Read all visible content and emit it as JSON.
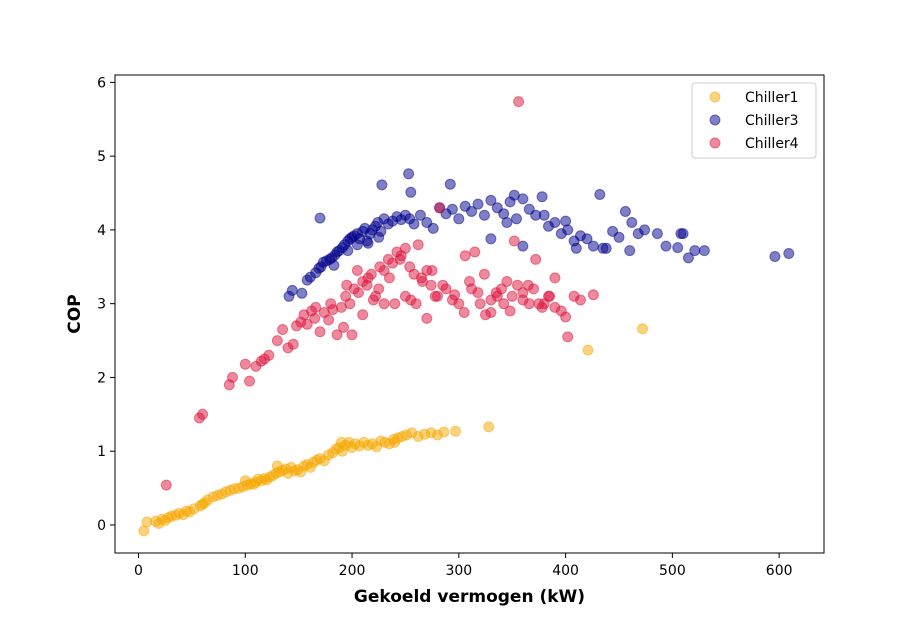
{
  "chart_data": {
    "type": "scatter",
    "xlabel": "Gekoeld vermogen (kW)",
    "ylabel": "COP",
    "xlim": [
      -22,
      642
    ],
    "ylim": [
      -0.38,
      6.1
    ],
    "xticks": [
      0,
      100,
      200,
      300,
      400,
      500,
      600
    ],
    "yticks": [
      0,
      1,
      2,
      3,
      4,
      5,
      6
    ],
    "grid": false,
    "legend_position": "top-right",
    "series": [
      {
        "name": "Chiller1",
        "color": "#f5a800",
        "points": [
          [
            5,
            -0.08
          ],
          [
            8,
            0.04
          ],
          [
            16,
            0.05
          ],
          [
            19,
            0.02
          ],
          [
            22,
            0.08
          ],
          [
            25,
            0.06
          ],
          [
            28,
            0.1
          ],
          [
            31,
            0.12
          ],
          [
            35,
            0.13
          ],
          [
            38,
            0.16
          ],
          [
            42,
            0.14
          ],
          [
            45,
            0.19
          ],
          [
            48,
            0.18
          ],
          [
            52,
            0.22
          ],
          [
            58,
            0.26
          ],
          [
            62,
            0.3
          ],
          [
            65,
            0.34
          ],
          [
            70,
            0.38
          ],
          [
            74,
            0.4
          ],
          [
            78,
            0.42
          ],
          [
            82,
            0.45
          ],
          [
            86,
            0.47
          ],
          [
            90,
            0.49
          ],
          [
            94,
            0.5
          ],
          [
            98,
            0.52
          ],
          [
            102,
            0.54
          ],
          [
            105,
            0.56
          ],
          [
            108,
            0.55
          ],
          [
            110,
            0.58
          ],
          [
            112,
            0.62
          ],
          [
            115,
            0.6
          ],
          [
            118,
            0.63
          ],
          [
            120,
            0.61
          ],
          [
            123,
            0.65
          ],
          [
            126,
            0.67
          ],
          [
            129,
            0.7
          ],
          [
            132,
            0.72
          ],
          [
            135,
            0.74
          ],
          [
            138,
            0.76
          ],
          [
            140,
            0.7
          ],
          [
            143,
            0.78
          ],
          [
            146,
            0.73
          ],
          [
            149,
            0.75
          ],
          [
            152,
            0.72
          ],
          [
            155,
            0.8
          ],
          [
            158,
            0.82
          ],
          [
            161,
            0.78
          ],
          [
            164,
            0.85
          ],
          [
            167,
            0.88
          ],
          [
            170,
            0.9
          ],
          [
            174,
            0.87
          ],
          [
            178,
            0.95
          ],
          [
            182,
            0.98
          ],
          [
            185,
            1.03
          ],
          [
            188,
            1.05
          ],
          [
            191,
            1.0
          ],
          [
            194,
            1.08
          ],
          [
            197,
            1.12
          ],
          [
            200,
            1.05
          ],
          [
            203,
            1.1
          ],
          [
            207,
            1.07
          ],
          [
            211,
            1.12
          ],
          [
            215,
            1.08
          ],
          [
            219,
            1.1
          ],
          [
            223,
            1.06
          ],
          [
            227,
            1.14
          ],
          [
            231,
            1.12
          ],
          [
            235,
            1.1
          ],
          [
            239,
            1.16
          ],
          [
            243,
            1.18
          ],
          [
            247,
            1.2
          ],
          [
            251,
            1.22
          ],
          [
            256,
            1.25
          ],
          [
            262,
            1.2
          ],
          [
            268,
            1.23
          ],
          [
            274,
            1.25
          ],
          [
            280,
            1.22
          ],
          [
            286,
            1.26
          ],
          [
            297,
            1.27
          ],
          [
            328,
            1.33
          ],
          [
            421,
            2.37
          ],
          [
            472,
            2.66
          ],
          [
            130,
            0.8
          ],
          [
            100,
            0.6
          ],
          [
            60,
            0.28
          ],
          [
            190,
            1.12
          ],
          [
            240,
            1.12
          ]
        ]
      },
      {
        "name": "Chiller3",
        "color": "#00008b",
        "points": [
          [
            141,
            3.1
          ],
          [
            144,
            3.18
          ],
          [
            153,
            3.14
          ],
          [
            158,
            3.32
          ],
          [
            161,
            3.36
          ],
          [
            166,
            3.42
          ],
          [
            169,
            3.48
          ],
          [
            171,
            3.5
          ],
          [
            173,
            3.56
          ],
          [
            176,
            3.58
          ],
          [
            179,
            3.6
          ],
          [
            181,
            3.62
          ],
          [
            184,
            3.66
          ],
          [
            186,
            3.7
          ],
          [
            188,
            3.72
          ],
          [
            191,
            3.76
          ],
          [
            193,
            3.8
          ],
          [
            196,
            3.85
          ],
          [
            198,
            3.88
          ],
          [
            200,
            3.9
          ],
          [
            202,
            3.92
          ],
          [
            205,
            3.95
          ],
          [
            207,
            3.88
          ],
          [
            210,
            3.98
          ],
          [
            212,
            4.02
          ],
          [
            214,
            3.85
          ],
          [
            217,
            3.95
          ],
          [
            219,
            4.0
          ],
          [
            222,
            4.05
          ],
          [
            224,
            4.1
          ],
          [
            227,
            3.98
          ],
          [
            230,
            4.15
          ],
          [
            234,
            4.08
          ],
          [
            238,
            4.12
          ],
          [
            242,
            4.18
          ],
          [
            246,
            4.14
          ],
          [
            250,
            4.2
          ],
          [
            254,
            4.15
          ],
          [
            258,
            4.08
          ],
          [
            264,
            4.2
          ],
          [
            270,
            4.1
          ],
          [
            276,
            4.02
          ],
          [
            282,
            4.3
          ],
          [
            288,
            4.22
          ],
          [
            294,
            4.28
          ],
          [
            300,
            4.15
          ],
          [
            306,
            4.32
          ],
          [
            312,
            4.25
          ],
          [
            318,
            4.35
          ],
          [
            324,
            4.2
          ],
          [
            330,
            4.4
          ],
          [
            336,
            4.3
          ],
          [
            342,
            4.22
          ],
          [
            348,
            4.38
          ],
          [
            354,
            4.15
          ],
          [
            360,
            4.42
          ],
          [
            366,
            4.28
          ],
          [
            372,
            4.2
          ],
          [
            378,
            4.45
          ],
          [
            384,
            4.05
          ],
          [
            390,
            4.1
          ],
          [
            396,
            3.95
          ],
          [
            402,
            4.0
          ],
          [
            408,
            3.85
          ],
          [
            414,
            3.92
          ],
          [
            420,
            3.88
          ],
          [
            426,
            3.78
          ],
          [
            432,
            4.48
          ],
          [
            438,
            3.75
          ],
          [
            444,
            3.98
          ],
          [
            450,
            3.9
          ],
          [
            456,
            4.25
          ],
          [
            462,
            4.1
          ],
          [
            468,
            3.95
          ],
          [
            474,
            4.0
          ],
          [
            486,
            3.95
          ],
          [
            494,
            3.78
          ],
          [
            505,
            3.76
          ],
          [
            510,
            3.95
          ],
          [
            515,
            3.62
          ],
          [
            521,
            3.72
          ],
          [
            530,
            3.72
          ],
          [
            596,
            3.64
          ],
          [
            609,
            3.68
          ],
          [
            170,
            4.16
          ],
          [
            228,
            4.61
          ],
          [
            253,
            4.76
          ],
          [
            292,
            4.62
          ],
          [
            352,
            4.47
          ],
          [
            360,
            3.78
          ],
          [
            400,
            4.12
          ],
          [
            330,
            3.88
          ],
          [
            380,
            4.2
          ],
          [
            183,
            3.52
          ],
          [
            196,
            3.72
          ],
          [
            205,
            3.8
          ],
          [
            215,
            3.82
          ],
          [
            225,
            3.9
          ],
          [
            255,
            4.51
          ],
          [
            345,
            4.1
          ],
          [
            410,
            3.75
          ],
          [
            435,
            3.75
          ],
          [
            460,
            3.72
          ],
          [
            508,
            3.95
          ]
        ]
      },
      {
        "name": "Chiller4",
        "color": "#dc143c",
        "points": [
          [
            26,
            0.54
          ],
          [
            57,
            1.45
          ],
          [
            60,
            1.5
          ],
          [
            85,
            1.9
          ],
          [
            88,
            2.0
          ],
          [
            100,
            2.18
          ],
          [
            104,
            1.95
          ],
          [
            110,
            2.15
          ],
          [
            115,
            2.22
          ],
          [
            118,
            2.25
          ],
          [
            122,
            2.3
          ],
          [
            130,
            2.5
          ],
          [
            135,
            2.65
          ],
          [
            140,
            2.4
          ],
          [
            145,
            2.45
          ],
          [
            148,
            2.7
          ],
          [
            152,
            2.75
          ],
          [
            155,
            2.85
          ],
          [
            158,
            2.72
          ],
          [
            162,
            2.9
          ],
          [
            166,
            2.95
          ],
          [
            170,
            2.62
          ],
          [
            174,
            2.88
          ],
          [
            178,
            2.78
          ],
          [
            182,
            2.92
          ],
          [
            186,
            2.58
          ],
          [
            190,
            2.95
          ],
          [
            194,
            3.1
          ],
          [
            198,
            3.0
          ],
          [
            202,
            3.2
          ],
          [
            206,
            3.15
          ],
          [
            210,
            3.3
          ],
          [
            214,
            3.25
          ],
          [
            218,
            3.4
          ],
          [
            222,
            3.1
          ],
          [
            226,
            3.5
          ],
          [
            230,
            3.45
          ],
          [
            234,
            3.6
          ],
          [
            238,
            3.55
          ],
          [
            242,
            3.7
          ],
          [
            246,
            3.65
          ],
          [
            250,
            3.75
          ],
          [
            254,
            3.5
          ],
          [
            258,
            3.4
          ],
          [
            262,
            3.8
          ],
          [
            266,
            3.3
          ],
          [
            270,
            3.45
          ],
          [
            274,
            3.25
          ],
          [
            278,
            3.1
          ],
          [
            282,
            4.3
          ],
          [
            288,
            3.2
          ],
          [
            294,
            3.05
          ],
          [
            300,
            3.0
          ],
          [
            306,
            3.65
          ],
          [
            312,
            3.2
          ],
          [
            318,
            3.15
          ],
          [
            324,
            3.4
          ],
          [
            330,
            3.05
          ],
          [
            336,
            3.1
          ],
          [
            342,
            3.0
          ],
          [
            348,
            2.9
          ],
          [
            352,
            3.85
          ],
          [
            356,
            5.74
          ],
          [
            360,
            3.15
          ],
          [
            366,
            3.0
          ],
          [
            372,
            3.6
          ],
          [
            378,
            2.95
          ],
          [
            384,
            3.1
          ],
          [
            390,
            3.35
          ],
          [
            396,
            2.9
          ],
          [
            402,
            2.55
          ],
          [
            408,
            3.1
          ],
          [
            414,
            3.05
          ],
          [
            426,
            3.12
          ],
          [
            200,
            2.58
          ],
          [
            210,
            2.85
          ],
          [
            220,
            3.05
          ],
          [
            230,
            3.0
          ],
          [
            240,
            3.0
          ],
          [
            250,
            3.1
          ],
          [
            260,
            3.0
          ],
          [
            270,
            2.8
          ],
          [
            280,
            3.1
          ],
          [
            296,
            3.12
          ],
          [
            310,
            3.3
          ],
          [
            320,
            3.0
          ],
          [
            330,
            2.88
          ],
          [
            340,
            3.2
          ],
          [
            350,
            3.1
          ],
          [
            360,
            3.05
          ],
          [
            370,
            3.2
          ],
          [
            380,
            3.0
          ],
          [
            390,
            2.95
          ],
          [
            400,
            2.82
          ],
          [
            192,
            2.68
          ],
          [
            180,
            3.0
          ],
          [
            165,
            2.8
          ],
          [
            215,
            3.35
          ],
          [
            225,
            3.2
          ],
          [
            245,
            3.6
          ],
          [
            265,
            3.35
          ],
          [
            285,
            3.25
          ],
          [
            305,
            2.88
          ],
          [
            325,
            2.85
          ],
          [
            345,
            3.3
          ],
          [
            365,
            3.25
          ],
          [
            385,
            3.1
          ],
          [
            195,
            3.25
          ],
          [
            205,
            3.45
          ],
          [
            235,
            3.35
          ],
          [
            255,
            3.05
          ],
          [
            275,
            3.45
          ],
          [
            315,
            3.7
          ],
          [
            335,
            3.15
          ],
          [
            355,
            3.25
          ],
          [
            375,
            3.0
          ]
        ]
      }
    ]
  }
}
